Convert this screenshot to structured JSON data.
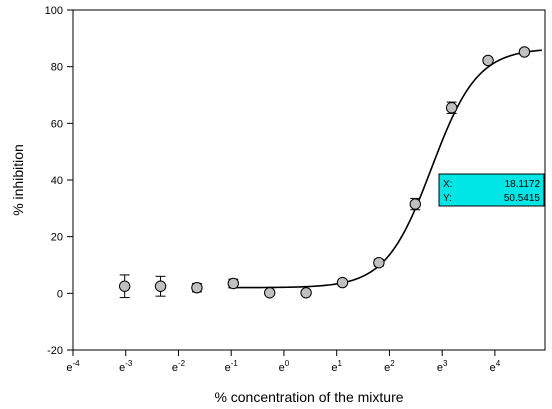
{
  "chart_data": {
    "type": "scatter",
    "xlabel": "% concentration of the mixture",
    "ylabel": "% inhibition",
    "xscale": "natural log",
    "x_ticks": [
      {
        "base": "e",
        "exp": "-4",
        "value": -4
      },
      {
        "base": "e",
        "exp": "-3",
        "value": -3
      },
      {
        "base": "e",
        "exp": "-2",
        "value": -2
      },
      {
        "base": "e",
        "exp": "-1",
        "value": -1
      },
      {
        "base": "e",
        "exp": "0",
        "value": 0
      },
      {
        "base": "e",
        "exp": "1",
        "value": 1
      },
      {
        "base": "e",
        "exp": "2",
        "value": 2
      },
      {
        "base": "e",
        "exp": "3",
        "value": 3
      },
      {
        "base": "e",
        "exp": "4",
        "value": 4
      }
    ],
    "y_ticks": [
      "-20",
      "0",
      "20",
      "40",
      "60",
      "80",
      "100"
    ],
    "ylim": [
      -20,
      100
    ],
    "xlim_exp": [
      -4,
      4.95
    ],
    "grid": false,
    "series": [
      {
        "points": [
          {
            "x_exp": -3.02,
            "y": 2.5,
            "err": 4.0
          },
          {
            "x_exp": -2.34,
            "y": 2.5,
            "err": 3.5
          },
          {
            "x_exp": -1.65,
            "y": 2.0,
            "err": 1.5
          },
          {
            "x_exp": -0.96,
            "y": 3.5,
            "err": 1.5
          },
          {
            "x_exp": -0.27,
            "y": 0.2,
            "err": 0
          },
          {
            "x_exp": 0.42,
            "y": 0.2,
            "err": 0
          },
          {
            "x_exp": 1.11,
            "y": 3.8,
            "err": 0.8
          },
          {
            "x_exp": 1.8,
            "y": 10.8,
            "err": 1.2
          },
          {
            "x_exp": 2.49,
            "y": 31.5,
            "err": 2.0
          },
          {
            "x_exp": 3.18,
            "y": 65.5,
            "err": 2.0
          },
          {
            "x_exp": 3.87,
            "y": 82.2,
            "err": 1.0
          },
          {
            "x_exp": 4.56,
            "y": 85.2,
            "err": 1.0
          }
        ]
      }
    ],
    "fit_curve": {
      "bottom": 2.0,
      "top": 86.5,
      "x50_exp": 2.8,
      "hill": 2.3,
      "x_exp_start": -1.05,
      "x_exp_end": 4.9
    },
    "tooltip": {
      "x_label": "X:",
      "x_value": "18.1172",
      "y_label": "Y:",
      "y_value": "50.5415",
      "color": "#00e5e5"
    },
    "marker_color": "#c0c0c0"
  }
}
